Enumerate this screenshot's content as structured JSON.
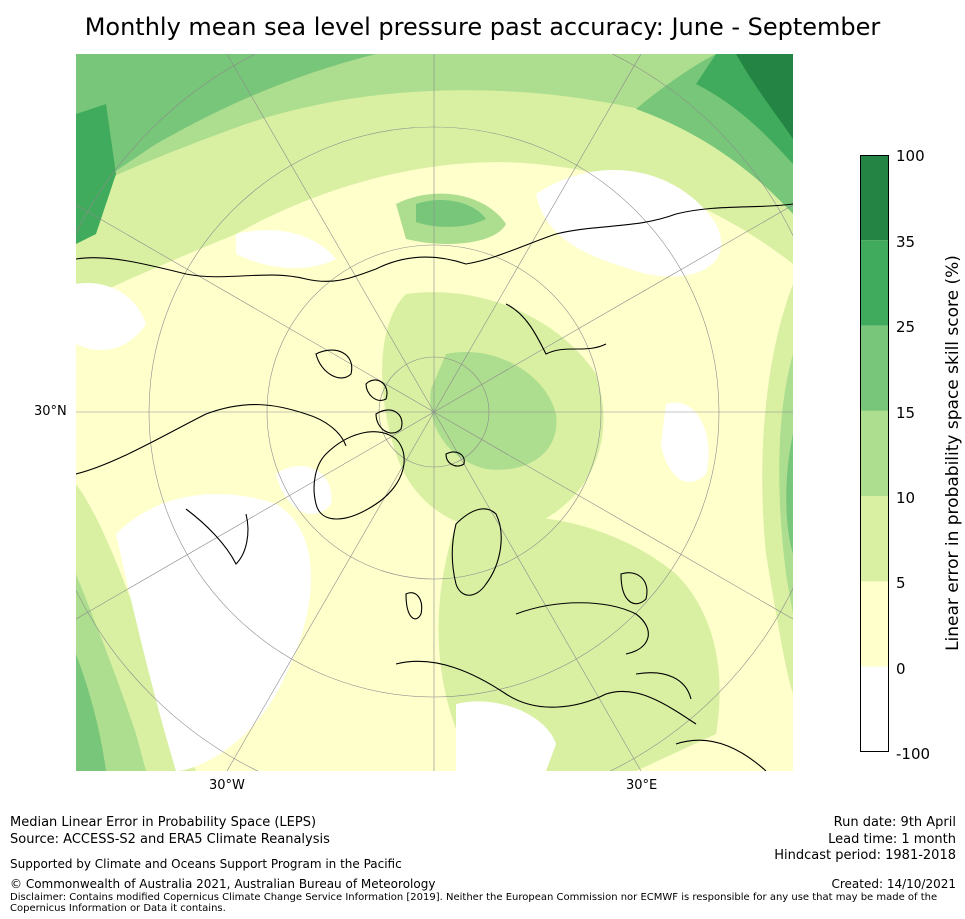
{
  "title": "Monthly mean sea level pressure past accuracy: June - September",
  "map": {
    "projection": "north polar stereographic",
    "labels": {
      "lat_30n": "30°N",
      "lon_30w": "30°W",
      "lon_30e": "30°E"
    },
    "colormap_levels": [
      -100,
      0,
      5,
      10,
      15,
      25,
      35,
      100
    ],
    "colormap_colors": [
      "#ffffff",
      "#ffffcc",
      "#d9f0a3",
      "#addd8e",
      "#78c679",
      "#41ab5d",
      "#238443"
    ]
  },
  "colorbar": {
    "label": "Linear error in probability space skill score (%)",
    "ticks": [
      "100",
      "35",
      "25",
      "15",
      "10",
      "5",
      "0",
      "-100"
    ]
  },
  "footer": {
    "line1": "Median Linear Error in Probability Space (LEPS)",
    "line2": "Source: ACCESS-S2 and ERA5 Climate Reanalysis",
    "supported": "Supported by Climate and Oceans Support Program in the Pacific",
    "copyright": "© Commonwealth of Australia 2021, Australian Bureau of Meteorology",
    "disclaimer": "Disclaimer: Contains modified Copernicus Climate Change Service Information [2019]. Neither the European Commission nor ECMWF is responsible for any use that may be made of the Copernicus Information or Data it contains.",
    "run_date": "Run date: 9th April",
    "lead_time": "Lead time: 1 month",
    "hindcast": "Hindcast period: 1981-2018",
    "created": "Created: 14/10/2021"
  }
}
